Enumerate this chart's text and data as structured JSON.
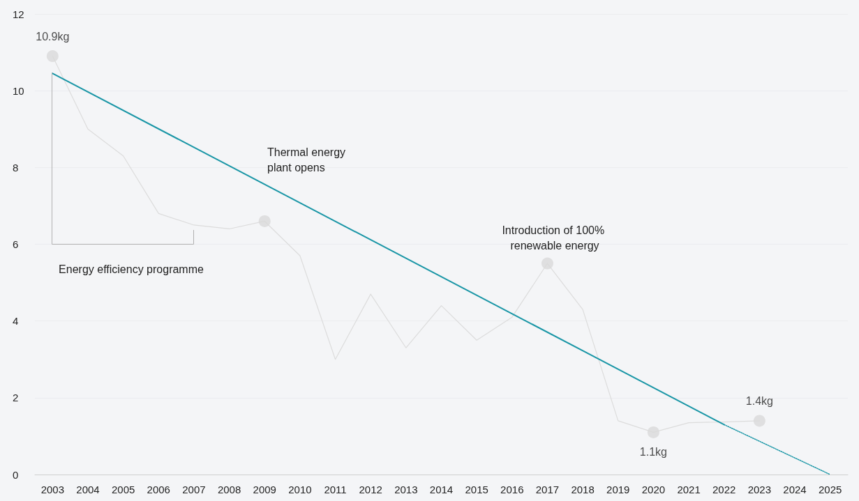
{
  "chart_data": {
    "type": "line",
    "categories": [
      "2003",
      "2004",
      "2005",
      "2006",
      "2007",
      "2008",
      "2009",
      "2010",
      "2011",
      "2012",
      "2013",
      "2014",
      "2015",
      "2016",
      "2017",
      "2018",
      "2019",
      "2020",
      "2021",
      "2022",
      "2023",
      "2024",
      "2025"
    ],
    "ylim": [
      0,
      12
    ],
    "yticks": [
      0,
      2,
      4,
      6,
      8,
      10,
      12
    ],
    "grid": "y",
    "series": [
      {
        "color": "#dcdcdc",
        "marker": "none",
        "line_style": "solid",
        "values": [
          10.9,
          9.0,
          8.3,
          6.8,
          6.5,
          6.4,
          6.6,
          5.7,
          3.0,
          4.7,
          3.3,
          4.4,
          3.5,
          4.1,
          5.5,
          4.3,
          1.4,
          1.1,
          1.35,
          1.37,
          1.4,
          null,
          null
        ]
      },
      {
        "type": "scatter",
        "color": "#d9d9d9",
        "marker": "circle",
        "values": [
          10.9,
          null,
          null,
          null,
          null,
          null,
          6.6,
          null,
          null,
          null,
          null,
          null,
          null,
          null,
          5.5,
          null,
          null,
          1.1,
          null,
          null,
          1.4,
          null,
          null
        ],
        "value_labels": [
          "10.9kg",
          null,
          null,
          null,
          null,
          null,
          null,
          null,
          null,
          null,
          null,
          null,
          null,
          null,
          null,
          null,
          null,
          "1.1kg",
          null,
          null,
          "1.4kg",
          null,
          null
        ]
      },
      {
        "color": "#1a96a6",
        "marker": "none",
        "line_style": "solid",
        "values": [
          10.45,
          null,
          null,
          null,
          null,
          null,
          null,
          null,
          null,
          null,
          null,
          null,
          null,
          null,
          null,
          null,
          null,
          null,
          null,
          1.3,
          null,
          null,
          null
        ]
      },
      {
        "color": "#1a96a6",
        "marker": "none",
        "line_style": "dotted",
        "values": [
          null,
          null,
          null,
          null,
          null,
          null,
          null,
          null,
          null,
          null,
          null,
          null,
          null,
          null,
          null,
          null,
          null,
          null,
          null,
          1.3,
          null,
          null,
          0
        ]
      }
    ],
    "annotations": [
      "Thermal energy plant opens",
      "Introduction of 100% renewable energy",
      "Energy efficiency programme"
    ]
  }
}
